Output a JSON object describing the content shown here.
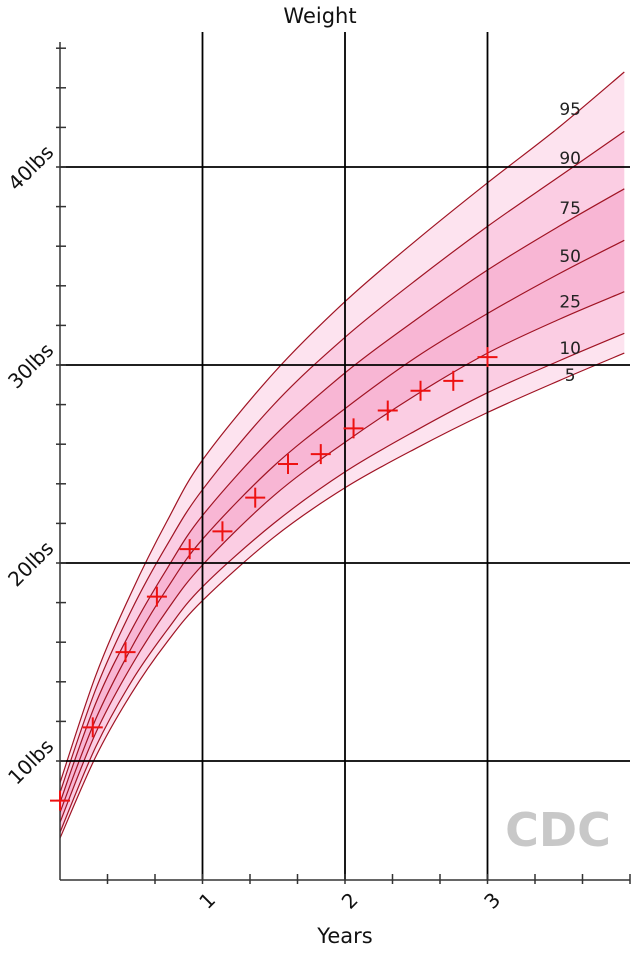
{
  "chart_data": {
    "type": "line",
    "title": "Weight",
    "xlabel": "Years",
    "ylabel": "",
    "xlim": [
      0,
      3.96
    ],
    "ylim": [
      5.7,
      48.5
    ],
    "grid": true,
    "x_ticks": [
      {
        "value": 1,
        "label": "1"
      },
      {
        "value": 2,
        "label": "2"
      },
      {
        "value": 3,
        "label": "3"
      }
    ],
    "y_ticks": [
      {
        "value": 10,
        "label": "10lbs"
      },
      {
        "value": 20,
        "label": "20lbs"
      },
      {
        "value": 30,
        "label": "30lbs"
      },
      {
        "value": 40,
        "label": "40lbs"
      }
    ],
    "percentile_curves": [
      {
        "name": "95",
        "x": [
          0,
          0.25,
          0.5,
          0.75,
          1,
          1.5,
          2,
          2.5,
          3,
          3.5,
          3.96
        ],
        "y": [
          8.9,
          14.3,
          18.5,
          22.1,
          25.2,
          29.6,
          33.2,
          36.3,
          39.2,
          42.0,
          44.8
        ]
      },
      {
        "name": "90",
        "x": [
          0,
          0.25,
          0.5,
          0.75,
          1,
          1.5,
          2,
          2.5,
          3,
          3.5,
          3.96
        ],
        "y": [
          8.4,
          13.6,
          17.6,
          20.9,
          23.7,
          28.0,
          31.4,
          34.3,
          37.0,
          39.5,
          41.8
        ]
      },
      {
        "name": "75",
        "x": [
          0,
          0.25,
          0.5,
          0.75,
          1,
          1.5,
          2,
          2.5,
          3,
          3.5,
          3.96
        ],
        "y": [
          7.9,
          12.9,
          16.6,
          19.7,
          22.4,
          26.4,
          29.6,
          32.3,
          34.8,
          37.0,
          38.9
        ]
      },
      {
        "name": "50",
        "x": [
          0,
          0.25,
          0.5,
          0.75,
          1,
          1.5,
          2,
          2.5,
          3,
          3.5,
          3.96
        ],
        "y": [
          7.4,
          12.1,
          15.7,
          18.7,
          21.2,
          24.9,
          27.8,
          30.4,
          32.6,
          34.6,
          36.3
        ]
      },
      {
        "name": "25",
        "x": [
          0,
          0.25,
          0.5,
          0.75,
          1,
          1.5,
          2,
          2.5,
          3,
          3.5,
          3.96
        ],
        "y": [
          6.9,
          11.4,
          14.8,
          17.6,
          19.9,
          23.4,
          26.1,
          28.5,
          30.6,
          32.3,
          33.7
        ]
      },
      {
        "name": "10",
        "x": [
          0,
          0.25,
          0.5,
          0.75,
          1,
          1.5,
          2,
          2.5,
          3,
          3.5,
          3.96
        ],
        "y": [
          6.4,
          10.7,
          14.0,
          16.6,
          18.8,
          22.0,
          24.6,
          26.7,
          28.6,
          30.2,
          31.6
        ]
      },
      {
        "name": "5",
        "x": [
          0,
          0.25,
          0.5,
          0.75,
          1,
          1.5,
          2,
          2.5,
          3,
          3.5,
          3.96
        ],
        "y": [
          6.1,
          10.2,
          13.4,
          16.0,
          18.1,
          21.3,
          23.8,
          25.8,
          27.6,
          29.2,
          30.6
        ]
      }
    ],
    "percentile_labels": [
      "95",
      "90",
      "75",
      "50",
      "25",
      "10",
      "5"
    ],
    "series": [
      {
        "name": "",
        "x": [
          0.0,
          0.23,
          0.46,
          0.68,
          0.91,
          1.14,
          1.37,
          1.6,
          1.83,
          2.06,
          2.3,
          2.53,
          2.76,
          3.0
        ],
        "y": [
          8.0,
          11.7,
          15.5,
          18.3,
          20.7,
          21.6,
          23.3,
          25.0,
          25.5,
          26.8,
          27.7,
          28.7,
          29.2,
          30.4
        ]
      }
    ],
    "colors": {
      "band_outer": "#fde3ef",
      "band_mid": "#fbcde3",
      "band_inner": "#f8b6d4",
      "curve": "#a01424",
      "marker": "#ee1111",
      "grid": "#000000"
    },
    "watermark": "CDC"
  }
}
